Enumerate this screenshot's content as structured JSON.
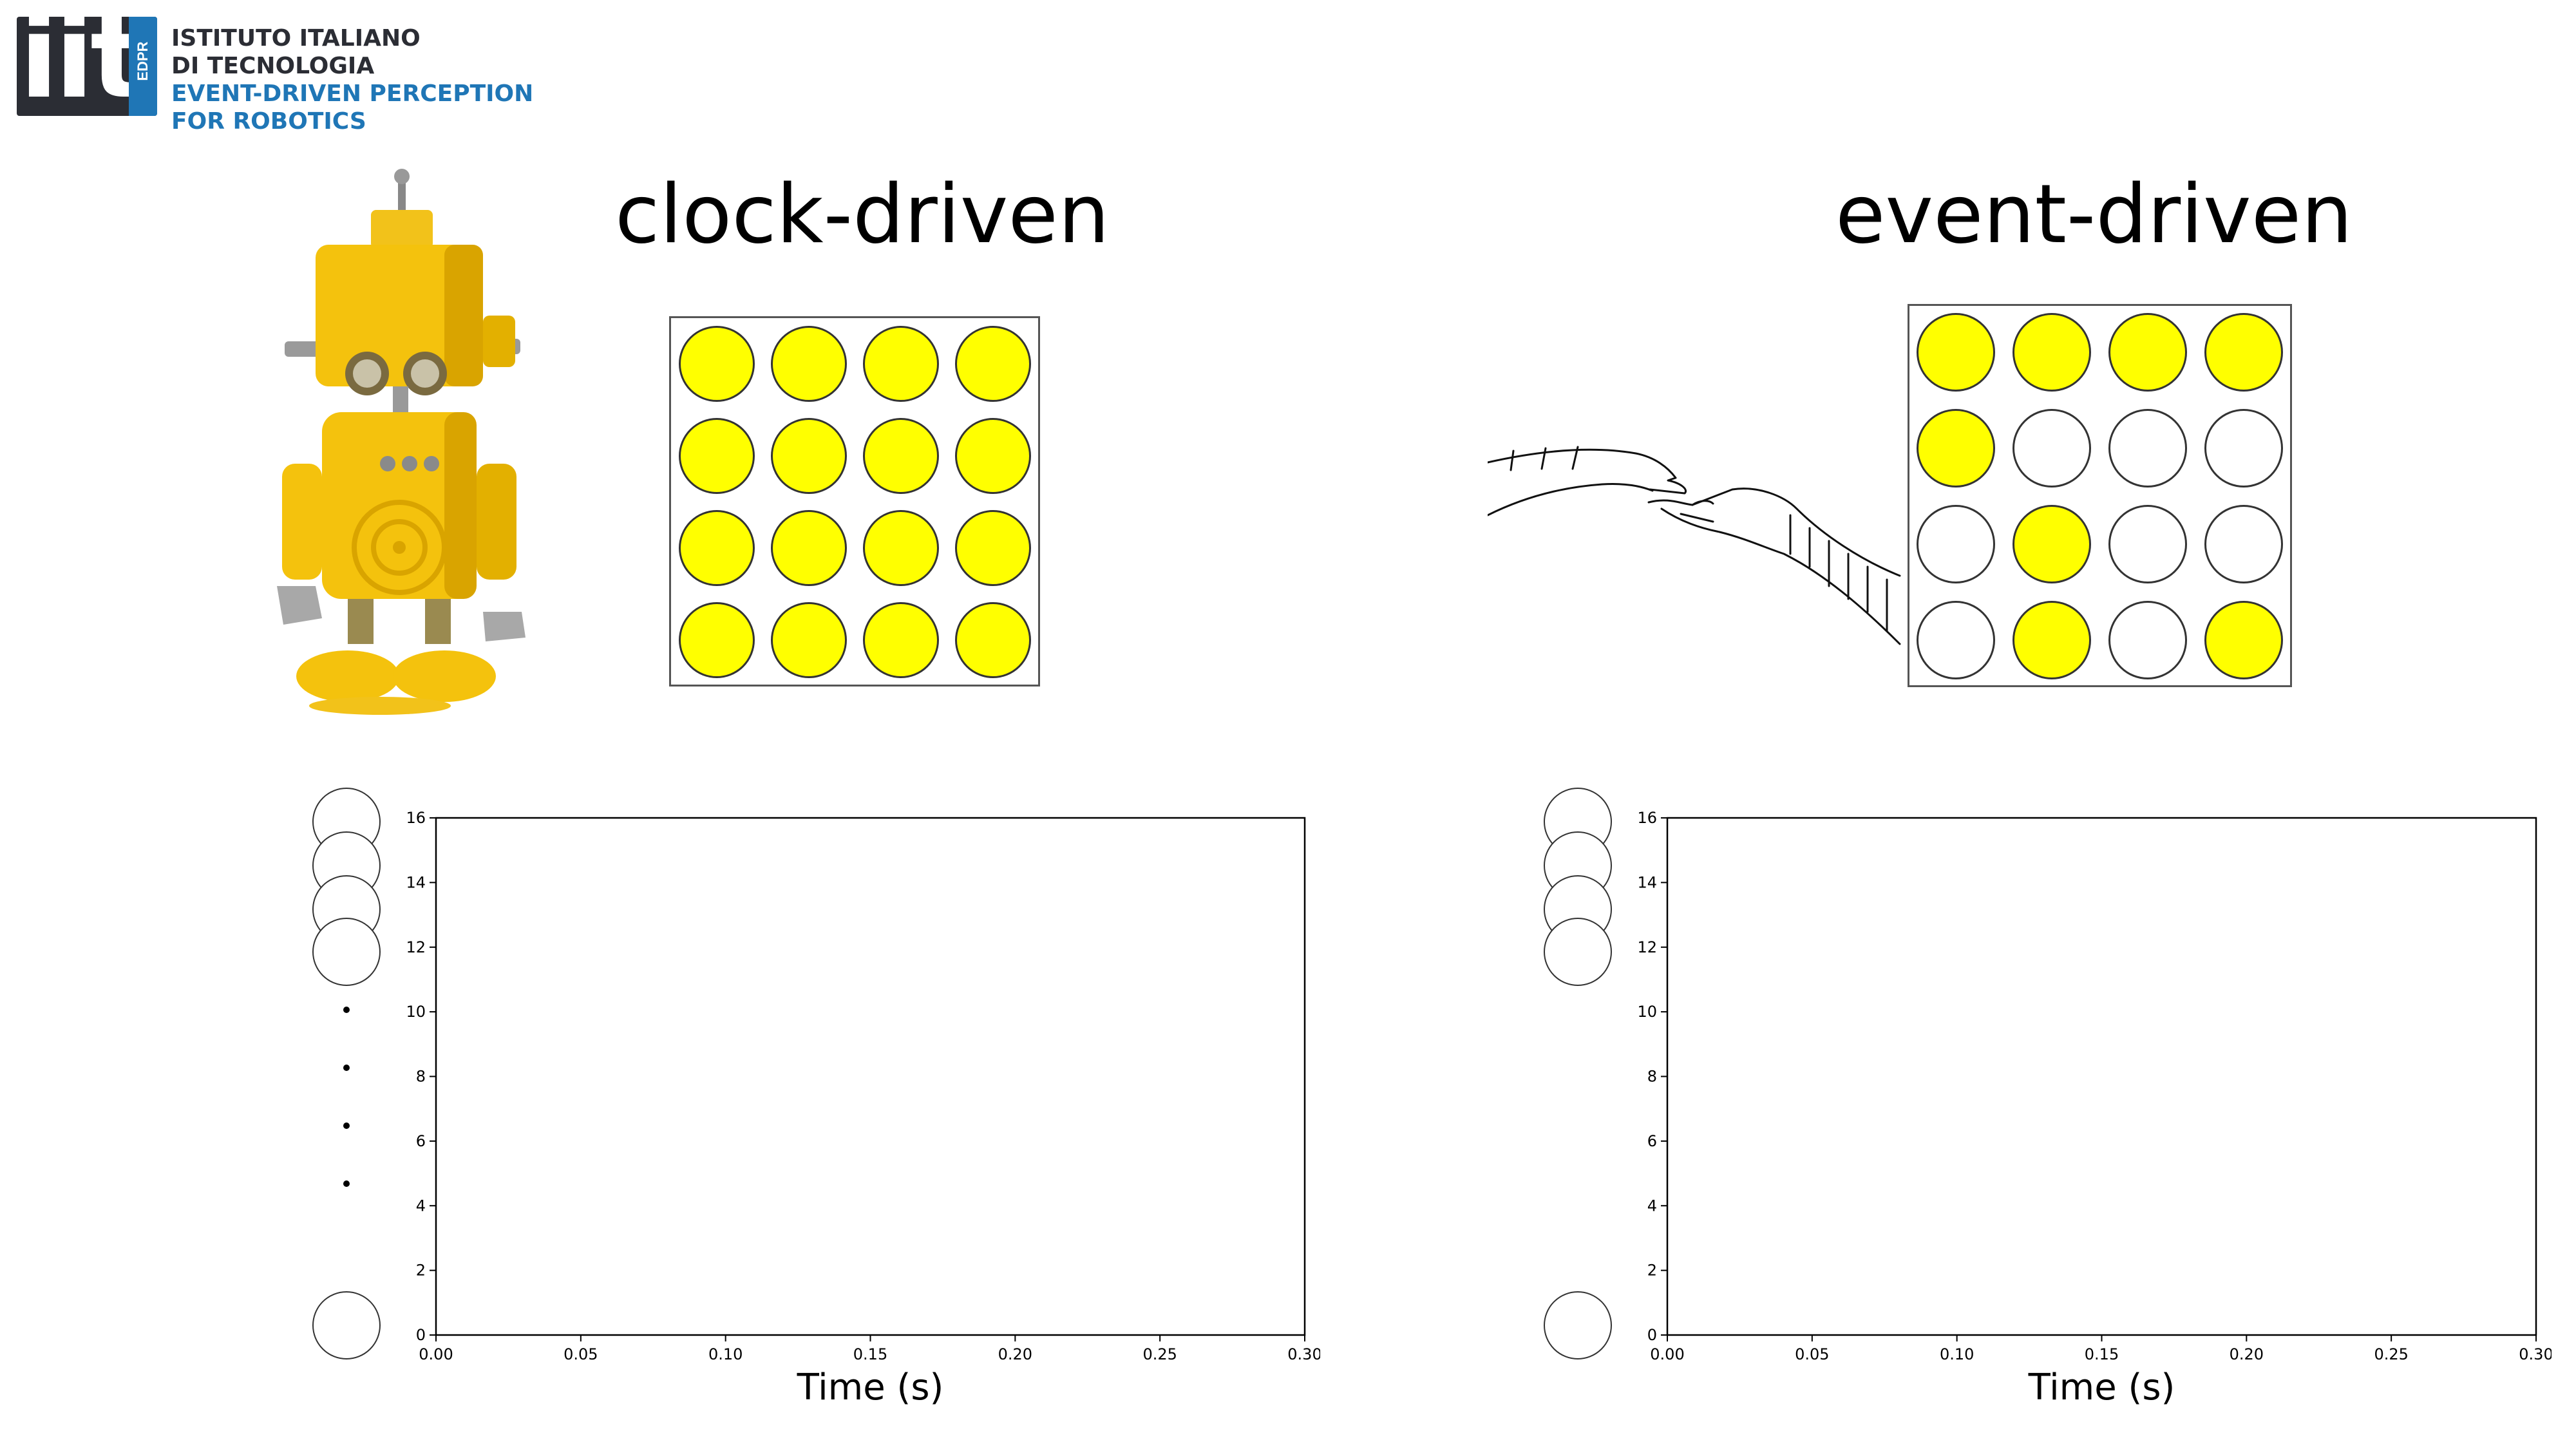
{
  "logo": {
    "mark_text": "iit",
    "mark_tag": "EDPR",
    "lines": [
      "ISTITUTO ITALIANO",
      "DI TECNOLOGIA",
      "EVENT-DRIVEN PERCEPTION",
      "FOR ROBOTICS"
    ],
    "colors": {
      "dark": "#2b2d34",
      "blue": "#1f76b6"
    }
  },
  "colors": {
    "active_pixel": "#ffff00",
    "inactive_pixel": "#ffffff",
    "outline": "#333333"
  },
  "left_panel": {
    "title": "clock-driven",
    "illustration": "robot-icon",
    "grid": [
      [
        1,
        1,
        1,
        1
      ],
      [
        1,
        1,
        1,
        1
      ],
      [
        1,
        1,
        1,
        1
      ],
      [
        1,
        1,
        1,
        1
      ]
    ]
  },
  "right_panel": {
    "title": "event-driven",
    "illustration": "touching-hands-icon",
    "grid": [
      [
        1,
        1,
        1,
        1
      ],
      [
        1,
        0,
        0,
        0
      ],
      [
        0,
        1,
        0,
        0
      ],
      [
        0,
        1,
        0,
        1
      ]
    ]
  },
  "plots": {
    "x_ticks": [
      "0.00",
      "0.05",
      "0.10",
      "0.15",
      "0.20",
      "0.25",
      "0.30"
    ],
    "y_ticks": [
      "0",
      "2",
      "4",
      "6",
      "8",
      "10",
      "12",
      "14",
      "16"
    ],
    "xlabel": "Time (s)",
    "xlim": [
      0,
      0.3
    ],
    "ylim": [
      0,
      16
    ]
  }
}
